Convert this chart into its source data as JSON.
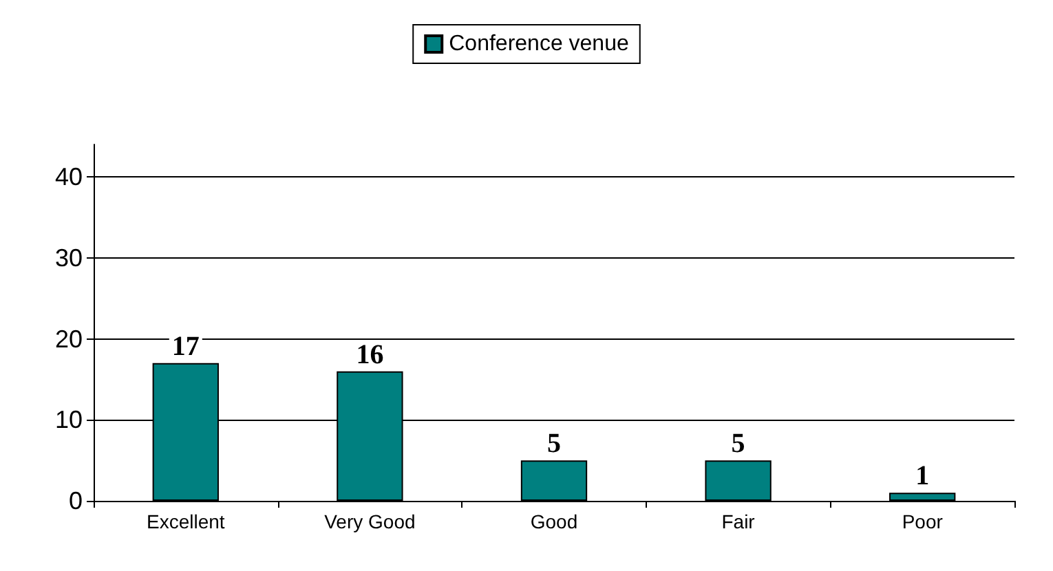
{
  "chart_data": {
    "type": "bar",
    "categories": [
      "Excellent",
      "Very Good",
      "Good",
      "Fair",
      "Poor"
    ],
    "series": [
      {
        "name": "Conference venue",
        "color": "#008080",
        "values": [
          17,
          16,
          5,
          5,
          1
        ]
      }
    ],
    "ylim": [
      0,
      44
    ],
    "yticks": [
      0,
      10,
      20,
      30,
      40
    ],
    "grid": "y",
    "legend": "top",
    "data_labels": true
  }
}
